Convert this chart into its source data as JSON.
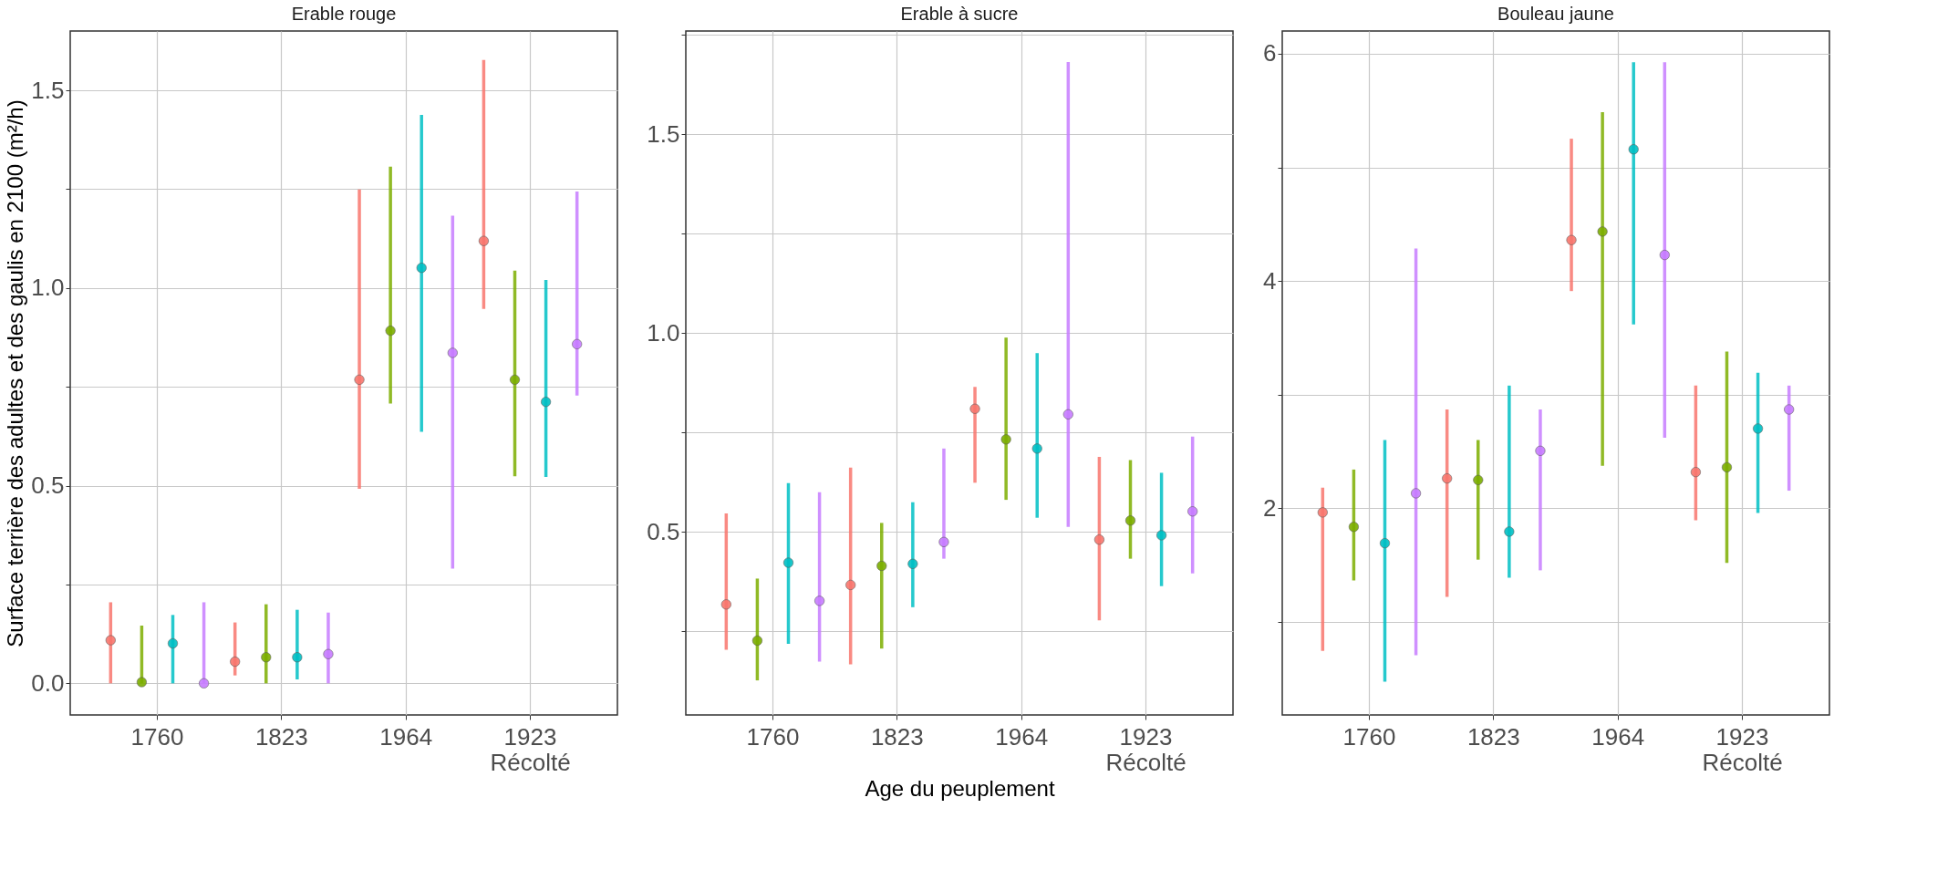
{
  "chart_data": [
    {
      "type": "scatter",
      "title": "Erable rouge",
      "ylabel": "Surface terrière des adultes et des gaulis en 2100  (m²/h)",
      "categories": [
        "1760",
        "1823",
        "1964",
        "1923\nRécolté"
      ],
      "ylim": [
        -0.08,
        1.65
      ],
      "yticks": [
        {
          "value": 0,
          "label": "0.0"
        },
        {
          "value": 0.25,
          "label": null
        },
        {
          "value": 0.5,
          "label": "0.5"
        },
        {
          "value": 0.75,
          "label": null
        },
        {
          "value": 1,
          "label": "1.0"
        },
        {
          "value": 1.25,
          "label": null
        },
        {
          "value": 1.5,
          "label": "1.5"
        }
      ],
      "grid": true,
      "legend": false,
      "marker": "circle",
      "series": [
        {
          "color": "#f8766d",
          "values": [
            0.109,
            0.055,
            0.768,
            1.119
          ],
          "errors": [
            [
              0.0,
              0.205
            ],
            [
              0.02,
              0.154
            ],
            [
              0.492,
              1.249
            ],
            [
              0.947,
              1.577
            ]
          ]
        },
        {
          "color": "#7cae00",
          "values": [
            0.003,
            0.066,
            0.892,
            0.768
          ],
          "errors": [
            [
              0.0,
              0.146
            ],
            [
              0.0,
              0.2
            ],
            [
              0.708,
              1.307
            ],
            [
              0.524,
              1.044
            ]
          ]
        },
        {
          "color": "#00bfc4",
          "values": [
            0.101,
            0.066,
            1.051,
            0.712
          ],
          "errors": [
            [
              0.0,
              0.173
            ],
            [
              0.01,
              0.186
            ],
            [
              0.636,
              1.438
            ],
            [
              0.522,
              1.02
            ]
          ]
        },
        {
          "color": "#c77cff",
          "values": [
            0.0,
            0.074,
            0.836,
            0.858
          ],
          "errors": [
            [
              0.0,
              0.205
            ],
            [
              0.0,
              0.179
            ],
            [
              0.29,
              1.183
            ],
            [
              0.728,
              1.244
            ]
          ]
        }
      ]
    },
    {
      "type": "scatter",
      "title": "Erable à sucre",
      "xlabel": "Age du peuplement",
      "categories": [
        "1760",
        "1823",
        "1964",
        "1923\nRécolté"
      ],
      "ylim": [
        0.04,
        1.76
      ],
      "yticks": [
        {
          "value": 0.25,
          "label": null
        },
        {
          "value": 0.5,
          "label": "0.5"
        },
        {
          "value": 0.75,
          "label": null
        },
        {
          "value": 1,
          "label": "1.0"
        },
        {
          "value": 1.25,
          "label": null
        },
        {
          "value": 1.5,
          "label": "1.5"
        },
        {
          "value": 1.75,
          "label": null
        }
      ],
      "grid": true,
      "legend": false,
      "marker": "circle",
      "series": [
        {
          "color": "#f8766d",
          "values": [
            0.318,
            0.367,
            0.81,
            0.481
          ],
          "errors": [
            [
              0.204,
              0.547
            ],
            [
              0.167,
              0.662
            ],
            [
              0.624,
              0.865
            ],
            [
              0.278,
              0.689
            ]
          ]
        },
        {
          "color": "#7cae00",
          "values": [
            0.227,
            0.415,
            0.733,
            0.529
          ],
          "errors": [
            [
              0.127,
              0.383
            ],
            [
              0.207,
              0.523
            ],
            [
              0.581,
              0.989
            ],
            [
              0.433,
              0.681
            ]
          ]
        },
        {
          "color": "#00bfc4",
          "values": [
            0.423,
            0.42,
            0.71,
            0.492
          ],
          "errors": [
            [
              0.219,
              0.623
            ],
            [
              0.311,
              0.575
            ],
            [
              0.536,
              0.95
            ],
            [
              0.364,
              0.649
            ]
          ]
        },
        {
          "color": "#c77cff",
          "values": [
            0.327,
            0.475,
            0.796,
            0.552
          ],
          "errors": [
            [
              0.174,
              0.6
            ],
            [
              0.433,
              0.71
            ],
            [
              0.513,
              1.682
            ],
            [
              0.396,
              0.74
            ]
          ]
        }
      ]
    },
    {
      "type": "scatter",
      "title": "Bouleau jaune",
      "categories": [
        "1760",
        "1823",
        "1964",
        "1923\nRécolté"
      ],
      "ylim": [
        0.18,
        6.2
      ],
      "yticks": [
        {
          "value": 1,
          "label": null
        },
        2,
        {
          "value": 3,
          "label": null
        },
        4,
        {
          "value": 5,
          "label": null
        },
        6
      ],
      "grid": true,
      "legend": false,
      "marker": "circle",
      "series": [
        {
          "color": "#f8766d",
          "values": [
            1.963,
            2.262,
            4.36,
            2.318
          ],
          "errors": [
            [
              0.743,
              2.18
            ],
            [
              1.22,
              2.869
            ],
            [
              3.911,
              5.252
            ],
            [
              1.893,
              3.079
            ]
          ]
        },
        {
          "color": "#7cae00",
          "values": [
            1.836,
            2.248,
            4.435,
            2.36
          ],
          "errors": [
            [
              1.364,
              2.34
            ],
            [
              1.547,
              2.6
            ],
            [
              2.374,
              5.486
            ],
            [
              1.519,
              3.379
            ]
          ]
        },
        {
          "color": "#00bfc4",
          "values": [
            1.692,
            1.794,
            5.159,
            2.701
          ],
          "errors": [
            [
              0.472,
              2.6
            ],
            [
              1.388,
              3.079
            ],
            [
              3.617,
              5.925
            ],
            [
              1.958,
              3.192
            ]
          ]
        },
        {
          "color": "#c77cff",
          "values": [
            2.131,
            2.505,
            4.229,
            2.869
          ],
          "errors": [
            [
              0.706,
              4.285
            ],
            [
              1.453,
              2.869
            ],
            [
              2.621,
              5.925
            ],
            [
              2.154,
              3.079
            ]
          ]
        }
      ]
    }
  ]
}
